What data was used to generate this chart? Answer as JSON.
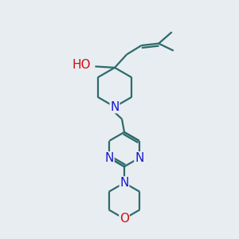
{
  "bg_color": "#e8edf2",
  "bond_color": "#2d6b6b",
  "n_color": "#1a1acc",
  "o_color": "#cc1111",
  "bond_width": 1.6,
  "font_size_atom": 11,
  "fig_size": [
    3.0,
    3.0
  ],
  "dpi": 100,
  "xlim": [
    0,
    10
  ],
  "ylim": [
    0,
    10
  ]
}
